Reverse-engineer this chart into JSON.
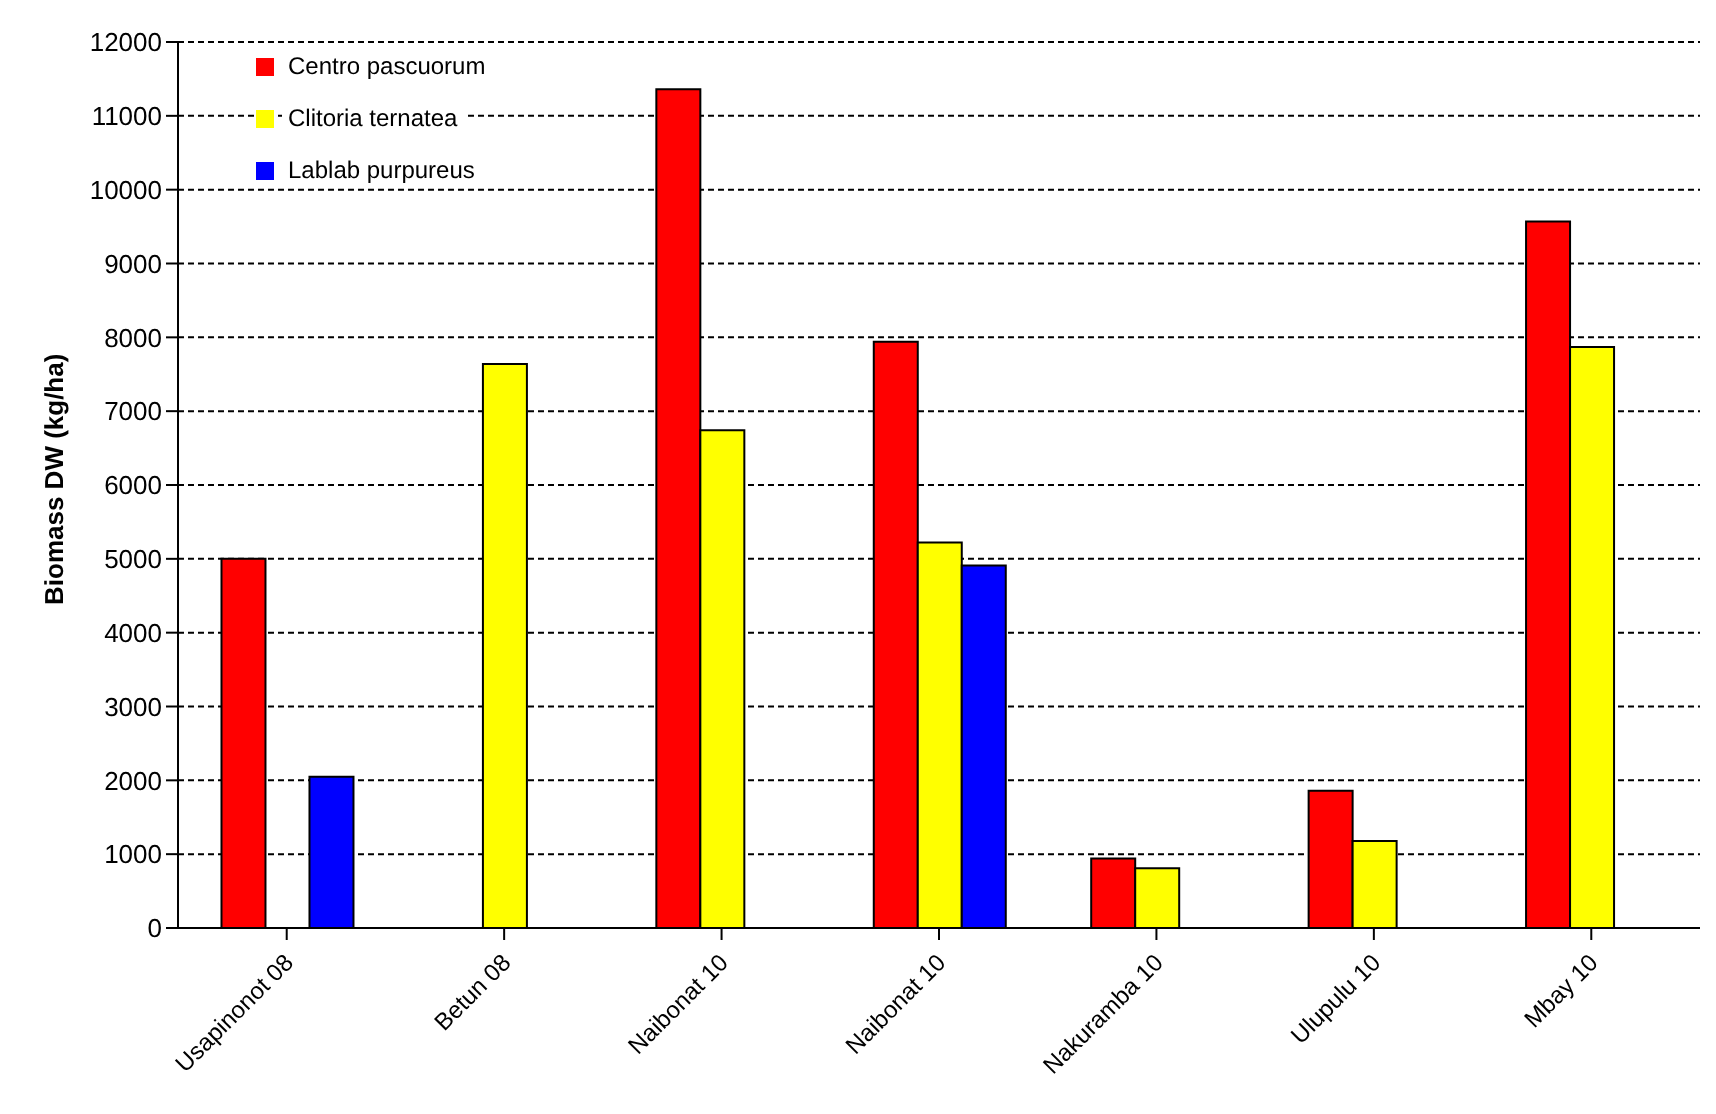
{
  "chart_data": {
    "type": "bar",
    "ylabel": "Biomass DW (kg/ha)",
    "categories": [
      "Usapinonot 08",
      "Betun 08",
      "Naibonat 10",
      "Naibonat 10",
      "Nakuramba 10",
      "Ulupulu 10",
      "Mbay 10"
    ],
    "series": [
      {
        "name": "Centro pascuorum",
        "color": "#ff0000",
        "values": [
          5000,
          null,
          11360,
          7940,
          940,
          1860,
          9570
        ]
      },
      {
        "name": "Clitoria ternatea",
        "color": "#ffff00",
        "values": [
          null,
          7640,
          6740,
          5220,
          810,
          1180,
          7870
        ]
      },
      {
        "name": "Lablab purpureus",
        "color": "#0000ff",
        "values": [
          2050,
          null,
          null,
          4910,
          null,
          null,
          null
        ]
      }
    ],
    "ylim": [
      0,
      12000
    ],
    "yticks": [
      0,
      1000,
      2000,
      3000,
      4000,
      5000,
      6000,
      7000,
      8000,
      9000,
      10000,
      11000,
      12000
    ],
    "grid": "y",
    "legend": "top left"
  }
}
